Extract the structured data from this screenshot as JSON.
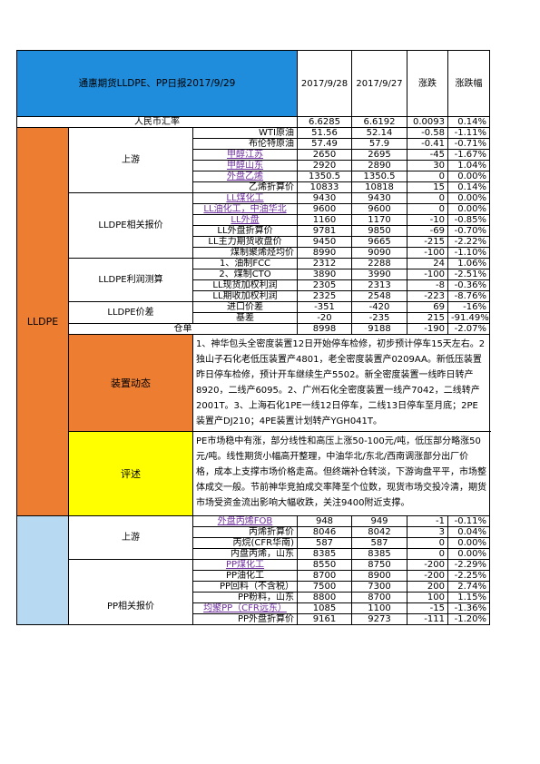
{
  "header": {
    "title": "通惠期货LLDPE、PP日报2017/9/29",
    "col1": "2017/9/28",
    "col2": "2017/9/27",
    "col3": "涨跌",
    "col4": "涨跌幅"
  },
  "fx": {
    "label": "人民币汇率",
    "v1": "6.6285",
    "v2": "6.6192",
    "chg": "0.0093",
    "pct": "0.14%"
  },
  "lldpe": {
    "label": "LLDPE",
    "upstream": {
      "label": "上游",
      "rows": [
        {
          "name": "WTI原油",
          "v1": "51.56",
          "v2": "52.14",
          "chg": "-0.58",
          "pct": "-1.11%"
        },
        {
          "name": "布伦特原油",
          "v1": "57.49",
          "v2": "57.9",
          "chg": "-0.41",
          "pct": "-0.71%"
        },
        {
          "name": "甲醇江苏",
          "v1": "2650",
          "v2": "2695",
          "chg": "-45",
          "pct": "-1.67%"
        },
        {
          "name": "甲醇山东",
          "v1": "2920",
          "v2": "2890",
          "chg": "30",
          "pct": "1.04%"
        },
        {
          "name": "外盘乙烯",
          "v1": "1350.5",
          "v2": "1350.5",
          "chg": "0",
          "pct": "0.00%"
        },
        {
          "name": "乙烯折算价",
          "v1": "10833",
          "v2": "10818",
          "chg": "15",
          "pct": "0.14%"
        }
      ]
    },
    "quotes": {
      "label": "LLDPE相关报价",
      "rows": [
        {
          "name": "LL煤化工",
          "v1": "9430",
          "v2": "9430",
          "chg": "0",
          "pct": "0.00%"
        },
        {
          "name": "LL油化工，中油华北",
          "v1": "9600",
          "v2": "9600",
          "chg": "0",
          "pct": "0.00%"
        },
        {
          "name": "LL外盘",
          "v1": "1160",
          "v2": "1170",
          "chg": "-10",
          "pct": "-0.85%"
        },
        {
          "name": "LL外盘折算价",
          "v1": "9781",
          "v2": "9850",
          "chg": "-69",
          "pct": "-0.70%"
        },
        {
          "name": "LL主力期货收盘价",
          "v1": "9450",
          "v2": "9665",
          "chg": "-215",
          "pct": "-2.22%"
        },
        {
          "name": "煤制聚烯烃均价",
          "v1": "8990",
          "v2": "9090",
          "chg": "-100",
          "pct": "-1.10%"
        }
      ]
    },
    "profit": {
      "label": "LLDPE利润测算",
      "rows": [
        {
          "name": "1、油制FCC",
          "v1": "2312",
          "v2": "2288",
          "chg": "24",
          "pct": "1.06%"
        },
        {
          "name": "2、煤制CTO",
          "v1": "3890",
          "v2": "3990",
          "chg": "-100",
          "pct": "-2.51%"
        },
        {
          "name": "LL现货加权利润",
          "v1": "2305",
          "v2": "2313",
          "chg": "-8",
          "pct": "-0.36%"
        },
        {
          "name": "LL期收加权利润",
          "v1": "2325",
          "v2": "2548",
          "chg": "-223",
          "pct": "-8.76%"
        }
      ]
    },
    "spread": {
      "label": "LLDPE价差",
      "rows": [
        {
          "name": "进口价差",
          "v1": "-351",
          "v2": "-420",
          "chg": "69",
          "pct": "-16%"
        },
        {
          "name": "基差",
          "v1": "-20",
          "v2": "-235",
          "chg": "215",
          "pct": "-91.49%"
        }
      ]
    },
    "warehouse": {
      "name": "仓单",
      "v1": "8998",
      "v2": "9188",
      "chg": "-190",
      "pct": "-2.07%"
    }
  },
  "maintenance": {
    "label": "装置动态",
    "text": "1、神华包头全密度装置12日开始停车检修，初步预计停车15天左右。2独山子石化老低压装置产4801，老全密度装置产0209AA。新低压装置昨日停车检修，预计开车继续生产5502。新全密度装置一线昨日转产8920，二线产6095。2、广州石化全密度装置一线产7042，二线转产2001T。3、上海石化1PE一线12日停车，二线13日停车至月底；2PE装置产DJ210；4PE装置计划转产YGH041T。"
  },
  "review": {
    "label": "评述",
    "text": "PE市场稳中有涨，部分线性和高压上涨50-100元/吨，低压部分略涨50元/吨。线性期货小幅高开整理，中油华北/东北/西南调涨部分出厂价格，成本上支撑市场价格走高。但终端补仓转淡，下游询盘平平，市场整体成交一般。节前神华竞拍成交率降至个位数，现货市场交投冷清，期货市场受资金流出影响大幅收跌，关注9400附近支撑。"
  },
  "pp": {
    "upstream": {
      "label": "上游",
      "rows": [
        {
          "name": "外盘丙烯FOB",
          "v1": "948",
          "v2": "949",
          "chg": "-1",
          "pct": "-0.11%"
        },
        {
          "name": "丙烯折算价",
          "v1": "8046",
          "v2": "8042",
          "chg": "3",
          "pct": "0.04%"
        },
        {
          "name": "丙烷(CFR华南)",
          "v1": "587",
          "v2": "587",
          "chg": "0",
          "pct": "0.00%"
        },
        {
          "name": "内盘丙烯，山东",
          "v1": "8385",
          "v2": "8385",
          "chg": "0",
          "pct": "0.00%"
        }
      ]
    },
    "quotes": {
      "label": "PP相关报价",
      "rows": [
        {
          "name": "PP煤化工",
          "v1": "8550",
          "v2": "8750",
          "chg": "-200",
          "pct": "-2.29%"
        },
        {
          "name": "PP油化工",
          "v1": "8700",
          "v2": "8900",
          "chg": "-200",
          "pct": "-2.25%"
        },
        {
          "name": "PP回料（不含税）",
          "v1": "7500",
          "v2": "7300",
          "chg": "200",
          "pct": "2.74%"
        },
        {
          "name": "PP粉料，山东",
          "v1": "8800",
          "v2": "8700",
          "chg": "100",
          "pct": "1.15%"
        },
        {
          "name": "均聚PP（CFR远东）",
          "v1": "1085",
          "v2": "1100",
          "chg": "-15",
          "pct": "-1.36%"
        },
        {
          "name": "PP外盘折算价",
          "v1": "9161",
          "v2": "9273",
          "chg": "-111",
          "pct": "-1.20%"
        }
      ]
    }
  }
}
